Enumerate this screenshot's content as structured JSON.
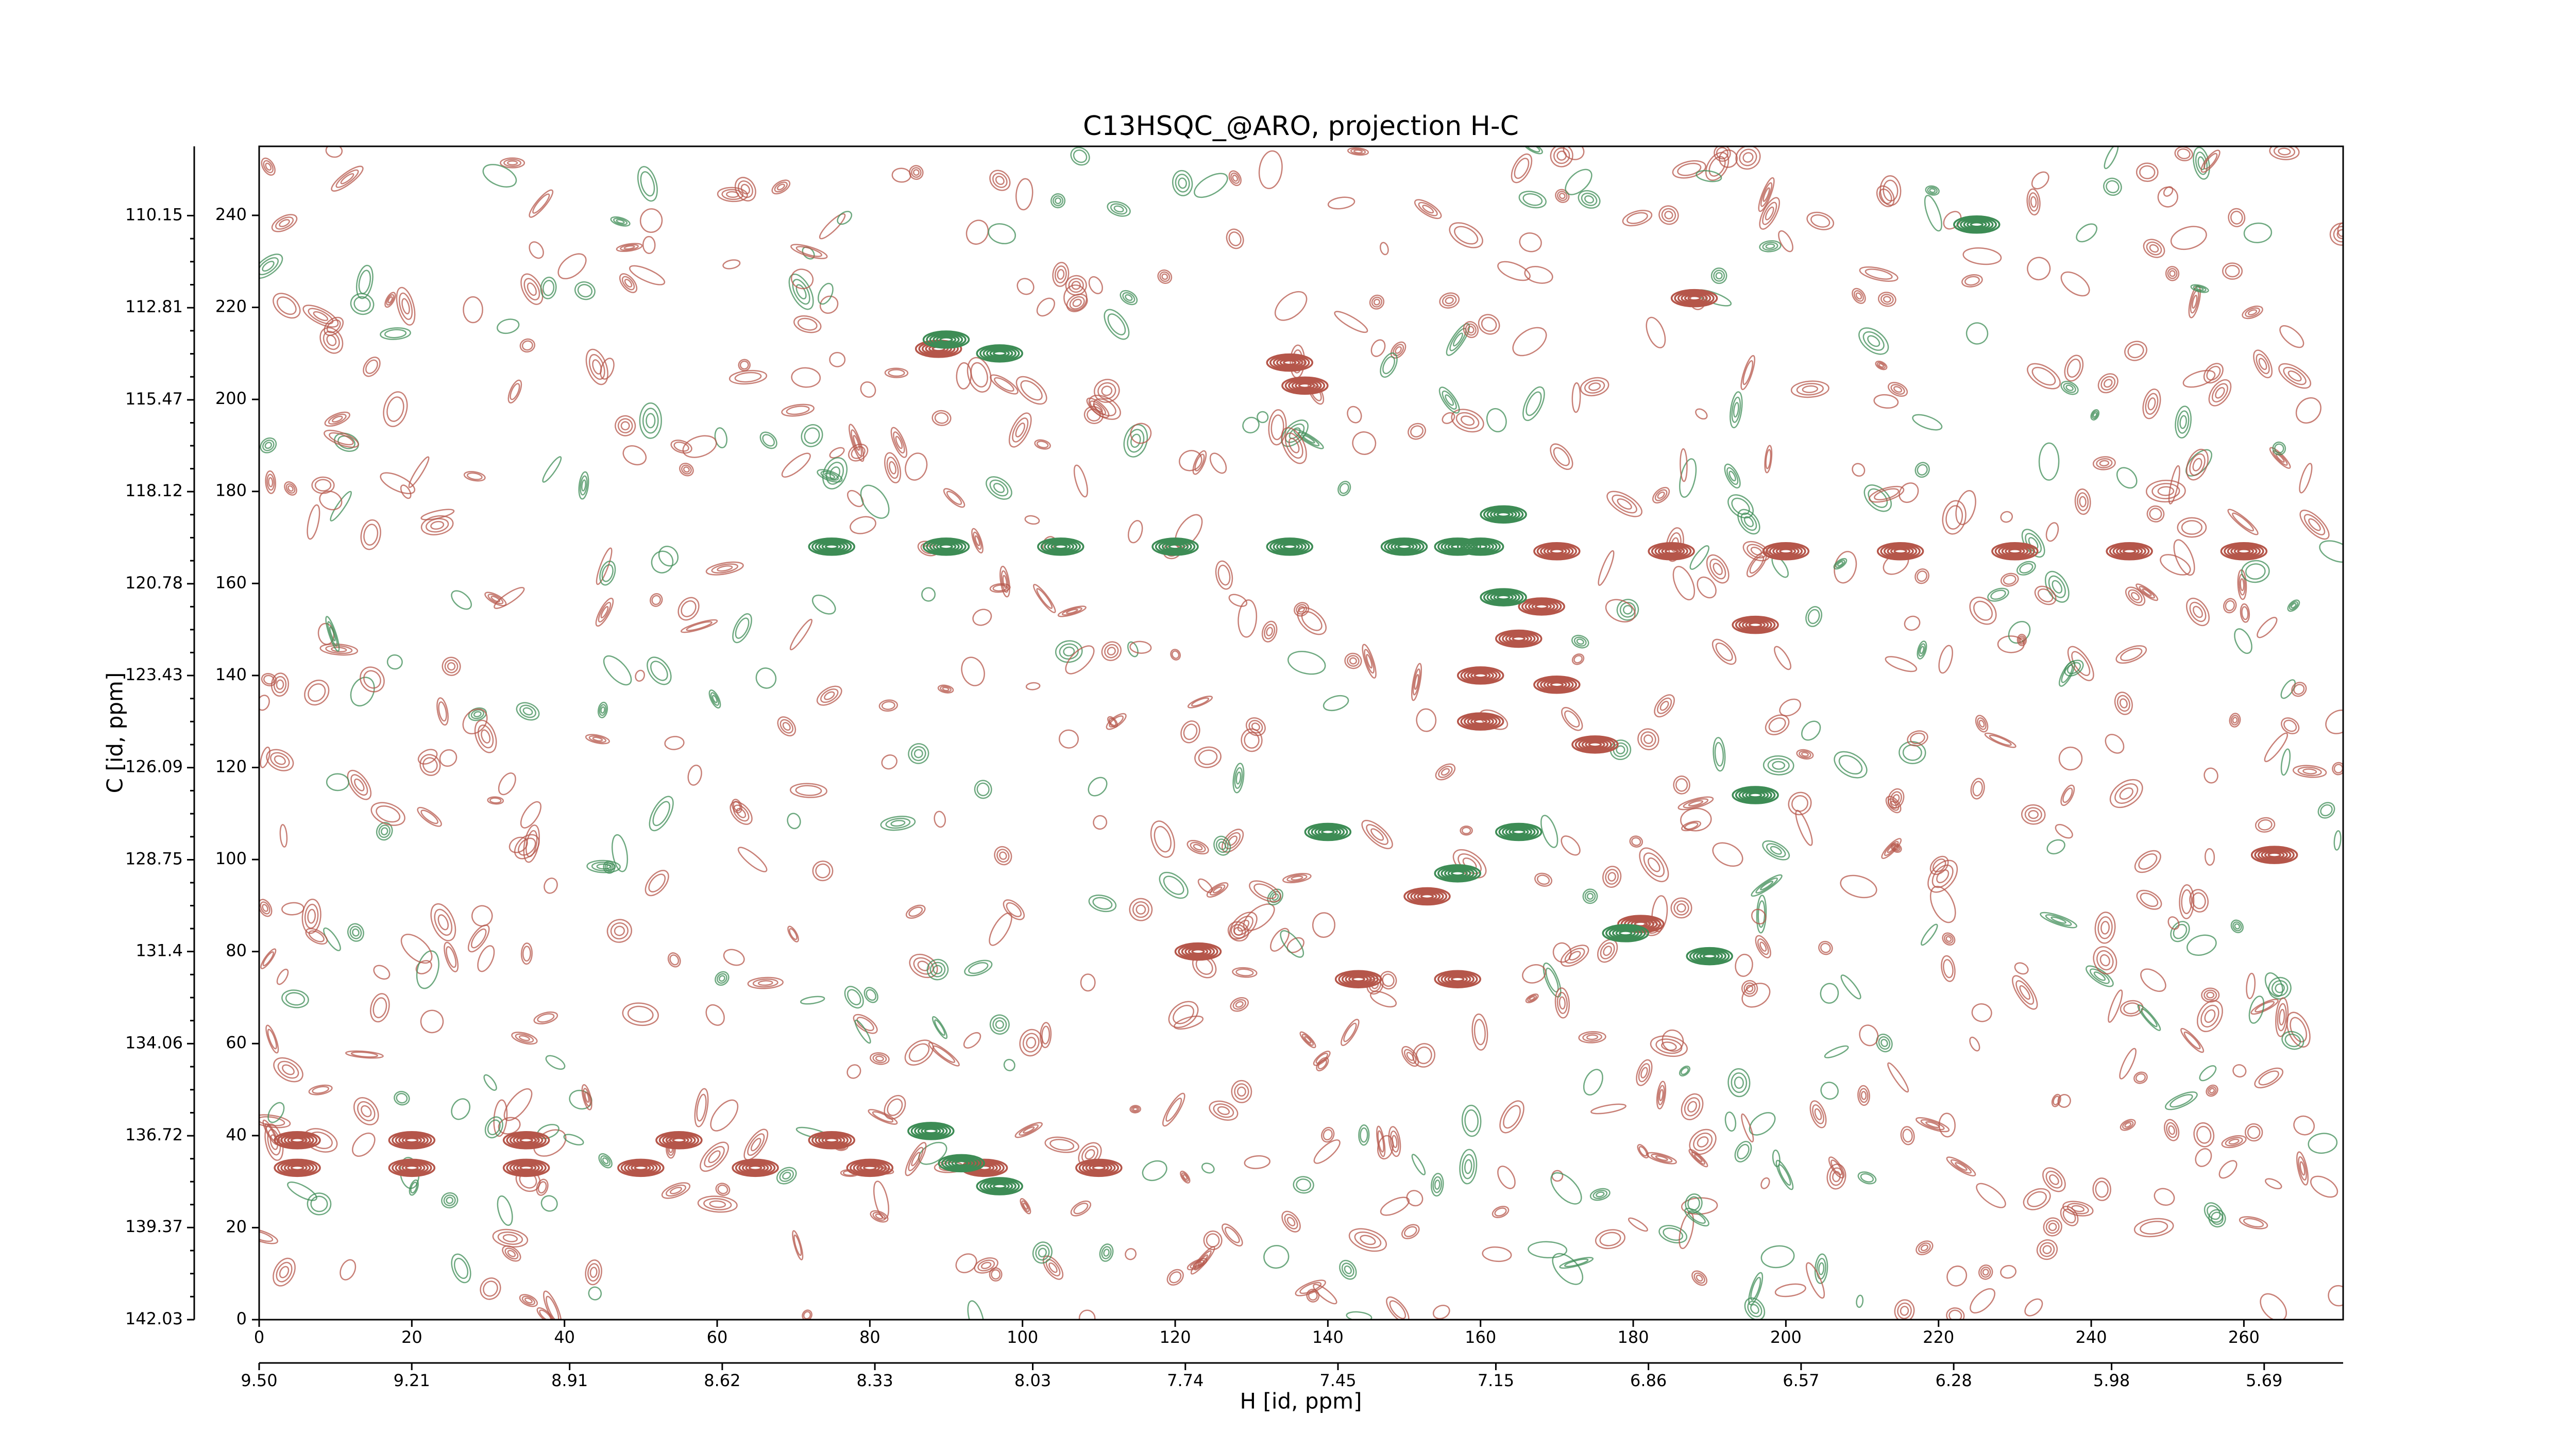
{
  "chart_data": {
    "type": "contour",
    "title": "C13HSQC_@ARO, projection H-C",
    "x_label": "H [id, ppm]",
    "y_label": "C [id, ppm]",
    "xlim": [
      0,
      273
    ],
    "ylim": [
      0,
      255
    ],
    "xticks": [
      0,
      20,
      40,
      60,
      80,
      100,
      120,
      140,
      160,
      180,
      200,
      220,
      240,
      260
    ],
    "yticks": [
      0,
      20,
      40,
      60,
      80,
      100,
      120,
      140,
      160,
      180,
      200,
      220,
      240
    ],
    "x2lim": [
      9.5,
      5.54
    ],
    "x2ticks": [
      {
        "value": 9.5,
        "label": "9.50"
      },
      9.21,
      8.91,
      8.62,
      8.33,
      8.03,
      7.74,
      7.45,
      7.15,
      6.86,
      6.57,
      6.28,
      5.98,
      5.69
    ],
    "y2lim": [
      142.03,
      108.15
    ],
    "y2ticks": [
      142.03,
      139.37,
      136.72,
      134.06,
      131.4,
      128.75,
      126.09,
      123.43,
      120.78,
      118.12,
      115.47,
      112.81,
      110.15
    ],
    "series": [
      {
        "color": "#b5564a",
        "x": [
          170,
          185,
          200,
          215,
          230,
          245,
          260,
          5,
          20,
          35,
          50,
          65,
          80,
          95,
          110,
          5,
          20,
          35,
          55,
          75,
          89,
          135,
          137,
          160,
          160,
          165,
          168,
          175,
          170,
          144,
          157,
          123,
          153,
          181,
          188,
          196,
          264
        ],
        "y": [
          167,
          167,
          167,
          167,
          167,
          167,
          167,
          33,
          33,
          33,
          33,
          33,
          33,
          33,
          33,
          39,
          39,
          39,
          39,
          39,
          211,
          208,
          203,
          130,
          140,
          148,
          155,
          125,
          138,
          74,
          74,
          80,
          92,
          86,
          222,
          151,
          101
        ]
      },
      {
        "color": "#3d8c55",
        "x": [
          75,
          90,
          105,
          120,
          135,
          150,
          160,
          90,
          97,
          163,
          163,
          157,
          92,
          88,
          97,
          140,
          165,
          157,
          196,
          190,
          225,
          179
        ],
        "y": [
          168,
          168,
          168,
          168,
          168,
          168,
          168,
          213,
          210,
          175,
          157,
          168,
          34,
          41,
          29,
          106,
          106,
          97,
          114,
          79,
          238,
          84
        ]
      }
    ]
  }
}
